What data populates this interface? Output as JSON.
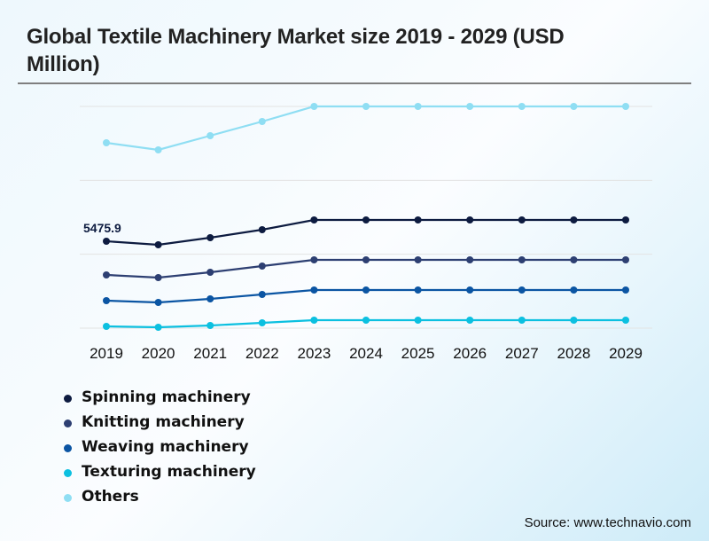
{
  "title": "Global Textile Machinery Market size 2019 - 2029 (USD Million)",
  "source": "Source: www.technavio.com",
  "chart_data": {
    "type": "line",
    "title": "Global Textile Machinery Market size 2019 - 2029 (USD Million)",
    "xlabel": "",
    "ylabel": "",
    "x": [
      "2019",
      "2020",
      "2021",
      "2022",
      "2023",
      "2024",
      "2025",
      "2026",
      "2027",
      "2028",
      "2029"
    ],
    "ylim": [
      0,
      14000
    ],
    "grid": true,
    "y_tick_labels_visible": false,
    "legend_position": "bottom-left",
    "annotations": [
      {
        "series": "Spinning machinery",
        "x": "2019",
        "text": "5475.9"
      }
    ],
    "series": [
      {
        "name": "Spinning machinery",
        "color": "#0d1b40",
        "values": [
          5475.9,
          5253,
          5700,
          6203,
          6817,
          6817,
          6817,
          6817,
          6817,
          6817,
          6817
        ]
      },
      {
        "name": "Knitting machinery",
        "color": "#2d3f72",
        "values": [
          3353,
          3185,
          3520,
          3912,
          4303,
          4303,
          4303,
          4303,
          4303,
          4303,
          4303
        ]
      },
      {
        "name": "Weaving machinery",
        "color": "#0b55a3",
        "values": [
          1732,
          1621,
          1844,
          2123,
          2403,
          2403,
          2403,
          2403,
          2403,
          2403,
          2403
        ]
      },
      {
        "name": "Texturing machinery",
        "color": "#0cc0e0",
        "values": [
          112,
          56,
          168,
          335,
          503,
          503,
          503,
          503,
          503,
          503,
          503
        ]
      },
      {
        "name": "Others",
        "color": "#8fdef3",
        "values": [
          11679,
          11232,
          12126,
          13020,
          13970,
          13970,
          13970,
          13970,
          13970,
          13970,
          13970
        ]
      }
    ]
  }
}
